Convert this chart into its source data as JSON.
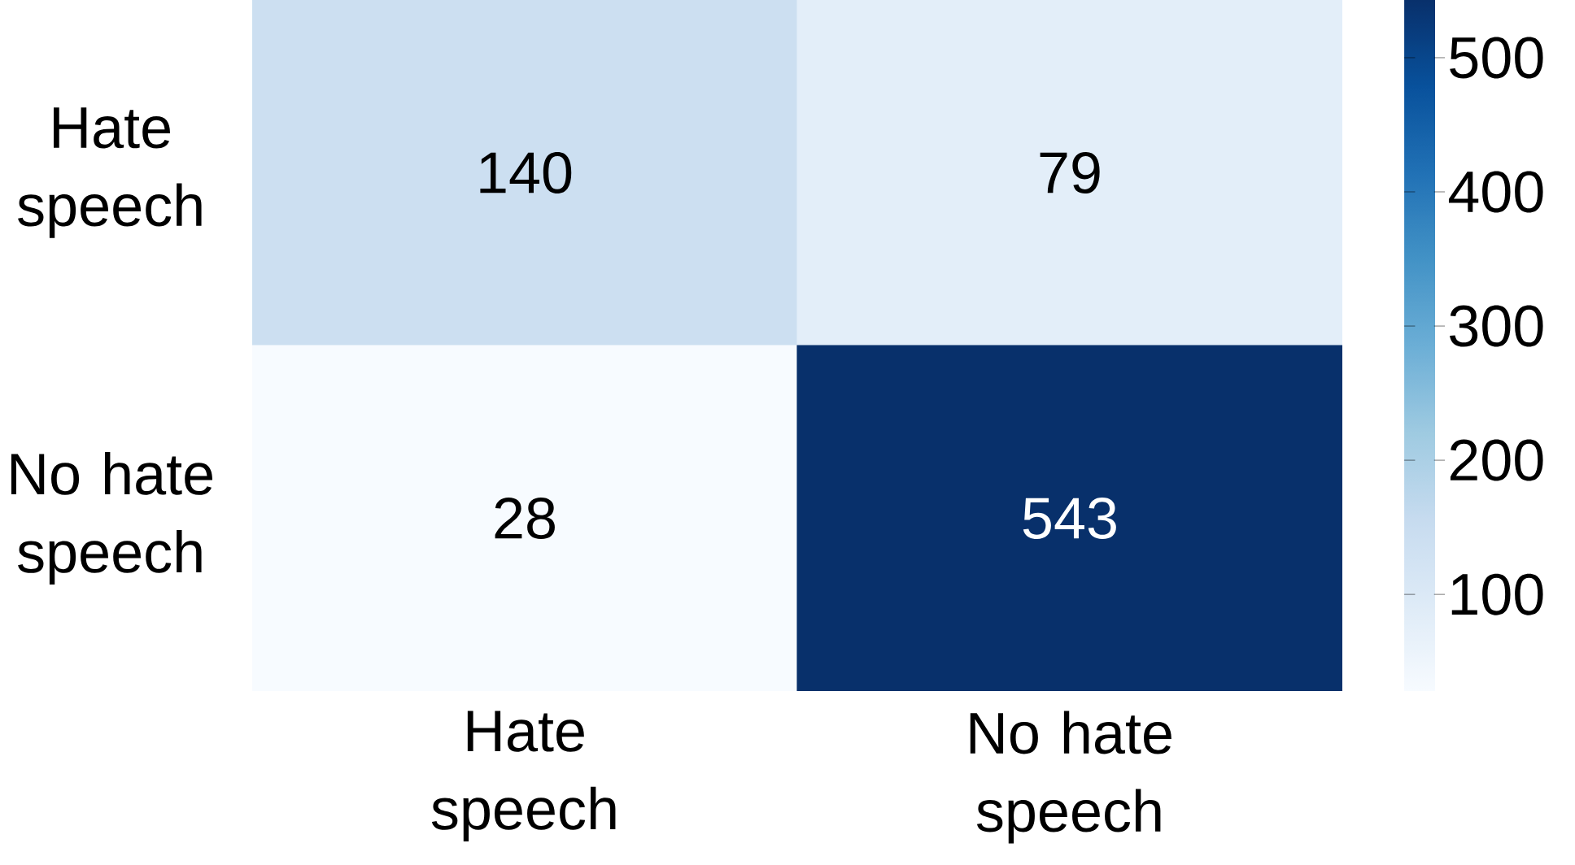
{
  "chart_data": {
    "type": "heatmap",
    "categories": [
      "Hate speech",
      "No hate speech"
    ],
    "y_categories": [
      "Hate speech",
      "No hate speech"
    ],
    "cells": [
      [
        140,
        79
      ],
      [
        28,
        543
      ]
    ],
    "data_labels": true,
    "clim": [
      28,
      543
    ],
    "cticks": [
      100,
      200,
      300,
      400,
      500
    ]
  }
}
